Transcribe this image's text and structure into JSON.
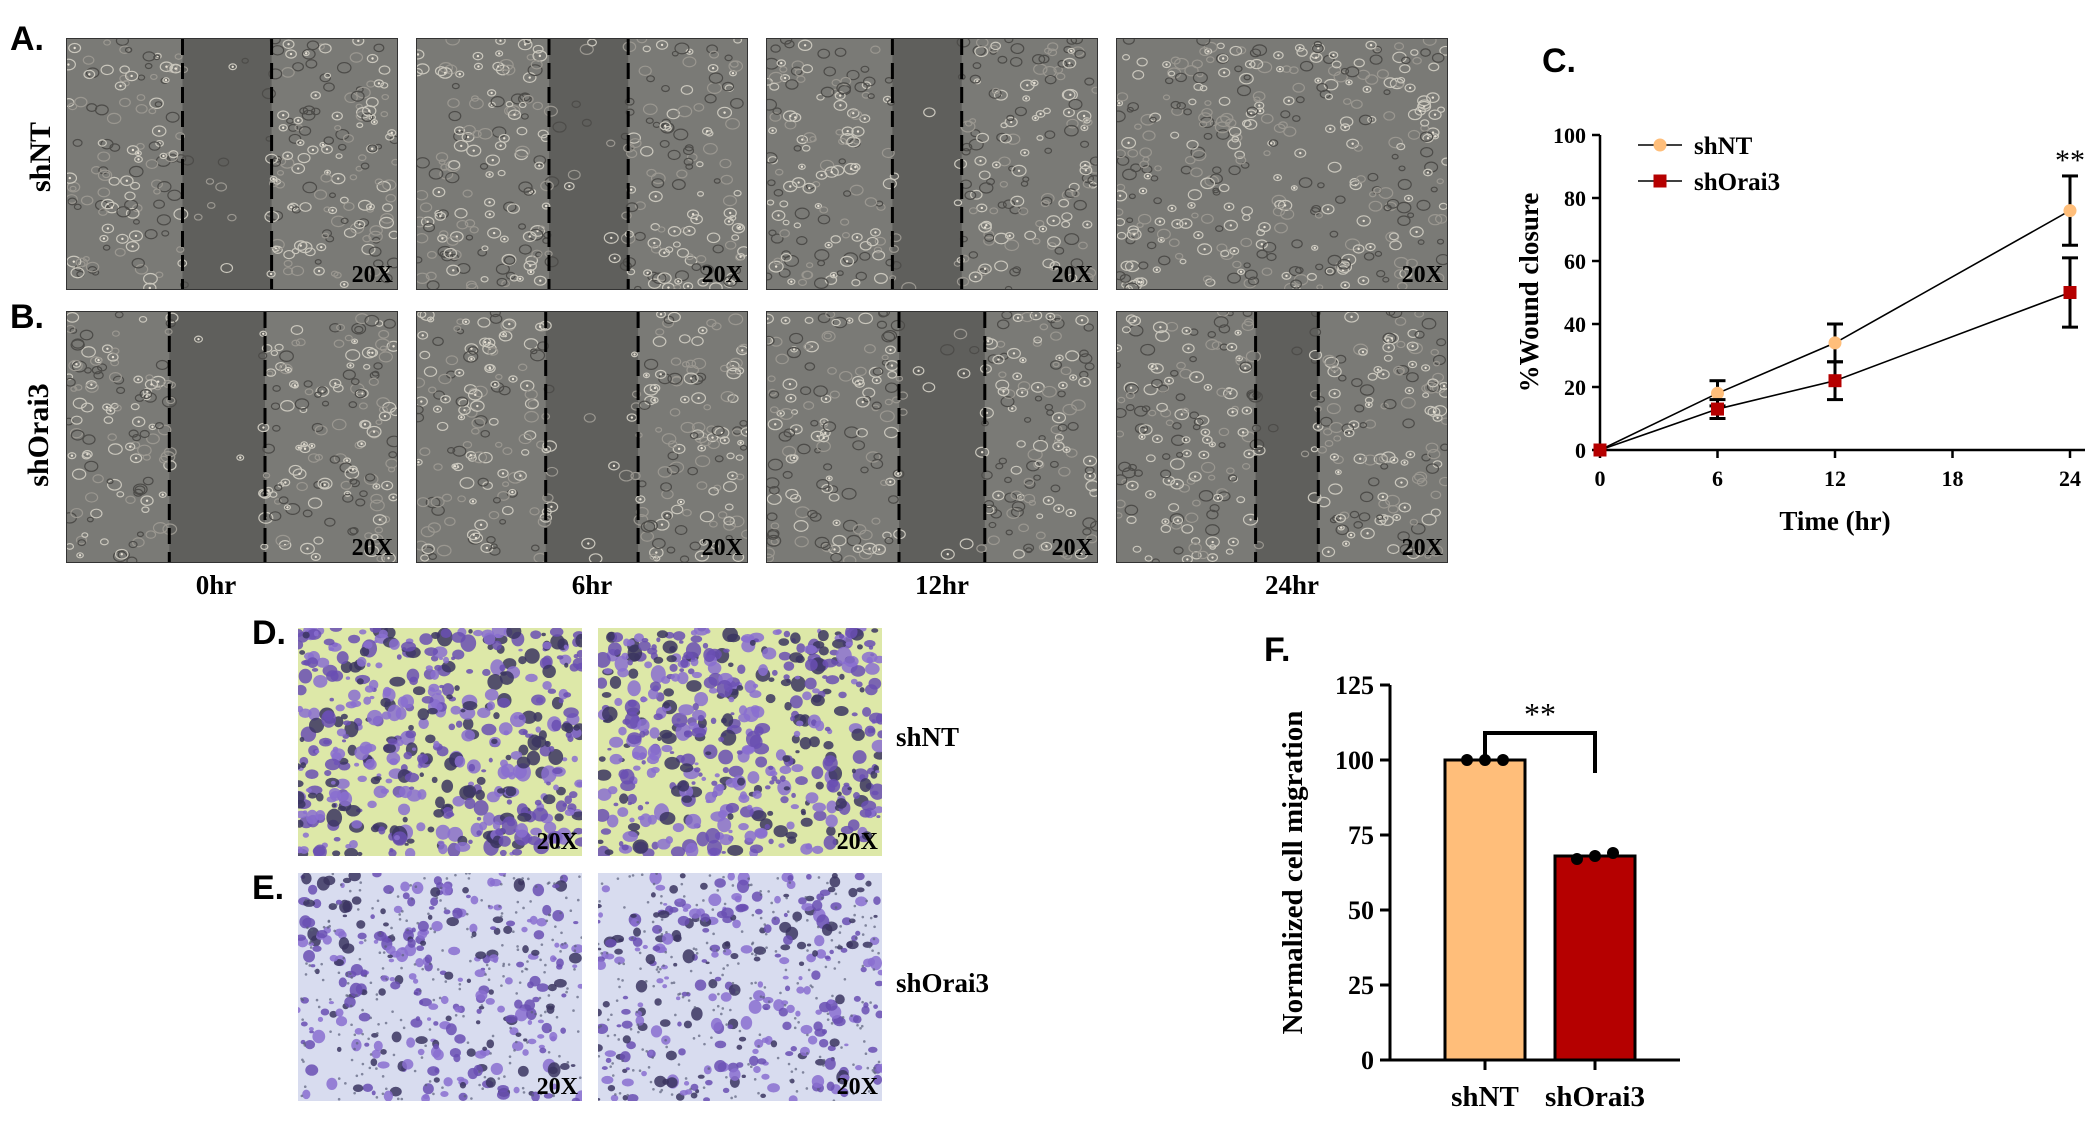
{
  "panel_letters": {
    "A": "A.",
    "B": "B.",
    "C": "C.",
    "D": "D.",
    "E": "E.",
    "F": "F."
  },
  "wound_rows": [
    {
      "label": "shNT"
    },
    {
      "label": "shOrai3"
    }
  ],
  "time_points": [
    "0hr",
    "6hr",
    "12hr",
    "24hr"
  ],
  "magnification": "20X",
  "transwell_rows": [
    {
      "label": "shNT"
    },
    {
      "label": "shOrai3"
    }
  ],
  "colors": {
    "shNT": "#FFBE7A",
    "shOrai3": "#B50000",
    "phase_bg": "#7a7a76",
    "gap": "#5f5f5c",
    "stain": "#6a4fb3",
    "transwell_bg_top": "#dde8a8",
    "transwell_bg_bottom": "#d8dcef"
  },
  "chart_data": [
    {
      "type": "line",
      "panel": "C",
      "xlabel": "Time (hr)",
      "ylabel": "%Wound closure",
      "xlim": [
        0,
        24
      ],
      "ylim": [
        0,
        100
      ],
      "xticks": [
        0,
        6,
        12,
        18,
        24
      ],
      "yticks": [
        0,
        20,
        40,
        60,
        80,
        100
      ],
      "legend_position": "top-left",
      "x": [
        0,
        6,
        12,
        24
      ],
      "series": [
        {
          "name": "shNT",
          "values": [
            0,
            18,
            34,
            76
          ],
          "errors": [
            0,
            4,
            6,
            11
          ],
          "marker": "circle"
        },
        {
          "name": "shOrai3",
          "values": [
            0,
            13,
            22,
            50
          ],
          "errors": [
            0,
            3,
            6,
            11
          ],
          "marker": "square"
        }
      ],
      "annotation": "**",
      "annotation_x": 24
    },
    {
      "type": "bar",
      "panel": "F",
      "categories": [
        "shNT",
        "shOrai3"
      ],
      "values": [
        100,
        68
      ],
      "points": [
        [
          100,
          100,
          100
        ],
        [
          67,
          68,
          69
        ]
      ],
      "ylabel": "Normalized cell migration",
      "ylim": [
        0,
        125
      ],
      "yticks": [
        0,
        25,
        50,
        75,
        100,
        125
      ],
      "annotation": "**"
    }
  ]
}
